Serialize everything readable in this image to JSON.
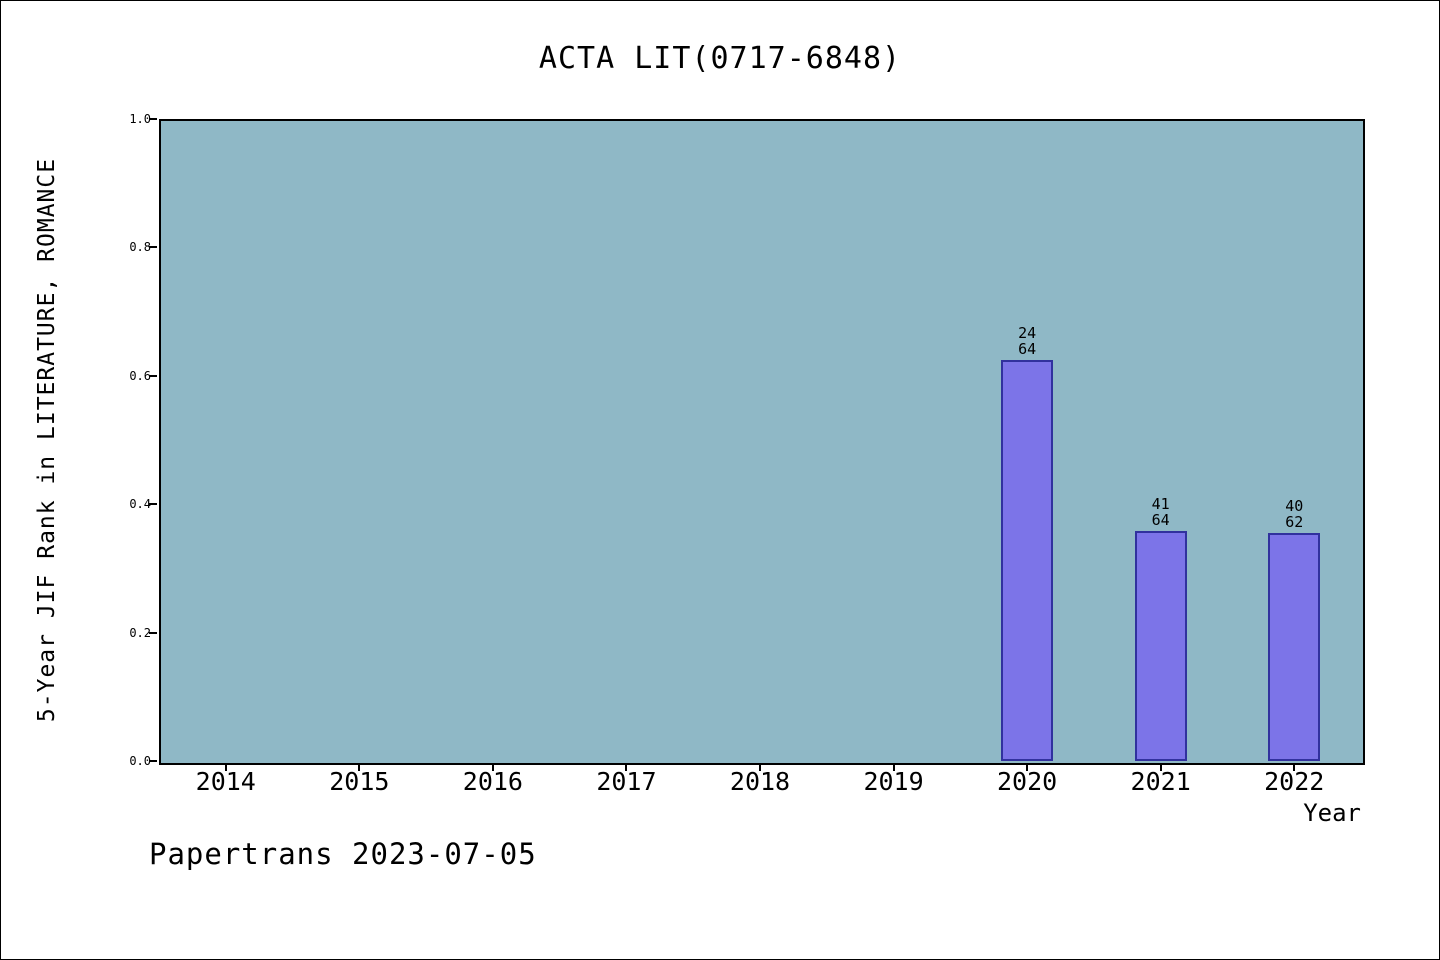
{
  "chart_data": {
    "type": "bar",
    "title": "ACTA LIT(0717-6848)",
    "xlabel": "Year",
    "ylabel": "5-Year JIF Rank in LITERATURE, ROMANCE",
    "categories": [
      "2014",
      "2015",
      "2016",
      "2017",
      "2018",
      "2019",
      "2020",
      "2021",
      "2022"
    ],
    "series": [
      {
        "name": "5-Year JIF Rank",
        "values": [
          null,
          null,
          null,
          null,
          null,
          null,
          0.625,
          0.359,
          0.355
        ]
      }
    ],
    "bar_annotations": [
      null,
      null,
      null,
      null,
      null,
      null,
      "24\n64",
      "41\n64",
      "40\n62"
    ],
    "ylim": [
      0,
      1
    ],
    "yticks": [
      "0.0",
      "0.2",
      "0.4",
      "0.6",
      "0.8",
      "1.0"
    ],
    "grid": false,
    "legend": false,
    "colors": {
      "plot_background": "#8fb8c6",
      "bar_fill": "#7c74e8",
      "bar_border": "#31319e"
    },
    "annotation": "Papertrans 2023-07-05"
  }
}
